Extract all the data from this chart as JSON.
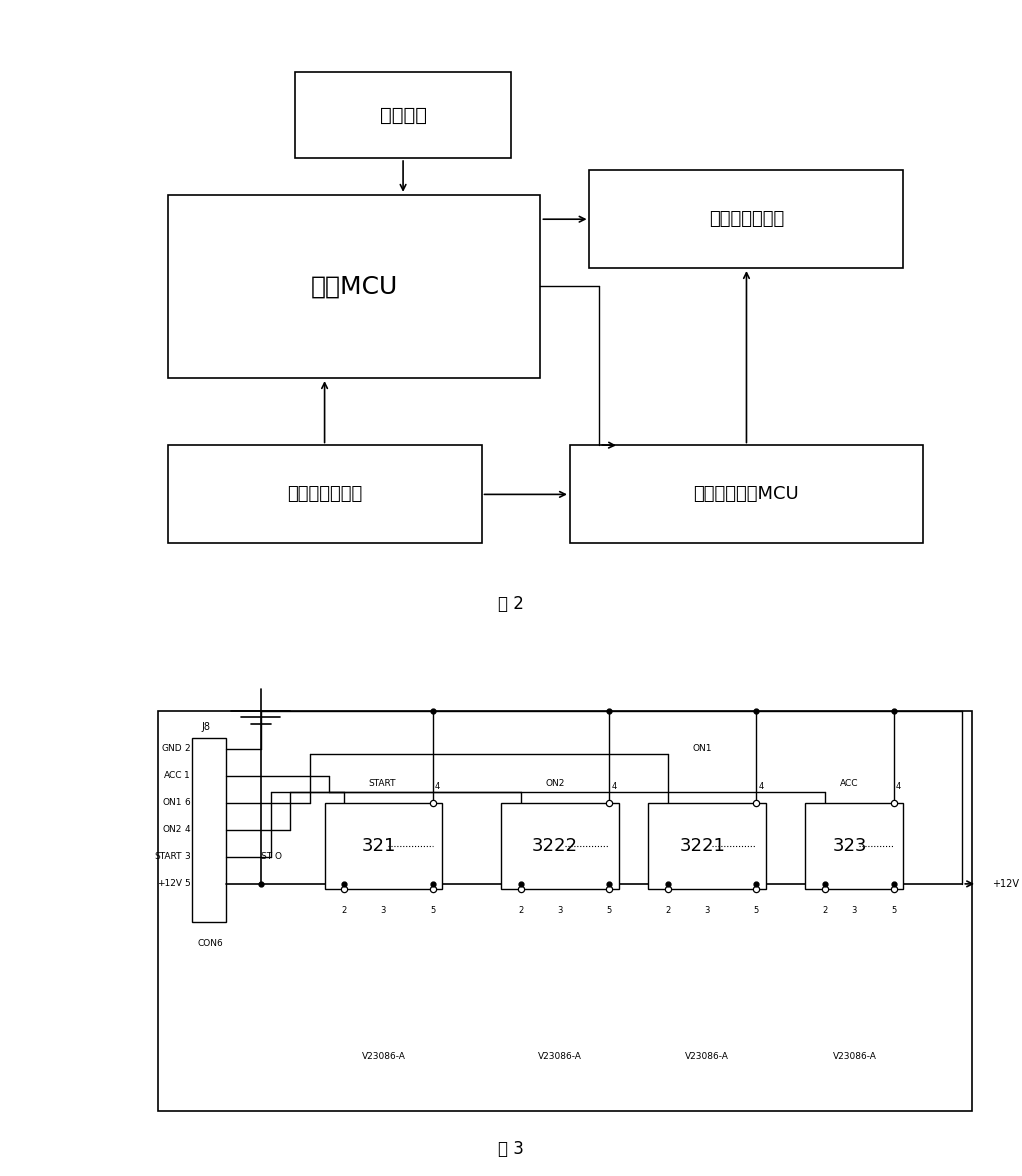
{
  "bg_color": "#ffffff",
  "fig2_caption": "图 2",
  "fig3_caption": "图 3",
  "fig2": {
    "btn_label": "启动按鈕",
    "mcu_label": "主控MCU",
    "relay_label": "启动马达继电器",
    "detect_label": "发动机启动检测",
    "monitor_label": "启动马达监测MCU"
  },
  "fig3": {
    "con_pins": [
      [
        "GND",
        "2"
      ],
      [
        "ACC",
        "1"
      ],
      [
        "ON1",
        "6"
      ],
      [
        "ON2",
        "4"
      ],
      [
        "START",
        "3"
      ],
      [
        "+12V",
        "5"
      ]
    ],
    "relay_labels": [
      "321",
      "3222",
      "3221",
      "323"
    ],
    "relay_top_labels": [
      "START",
      "ON2",
      "ON1",
      "ACC"
    ],
    "v_labels": [
      "V23086-A",
      "V23086-A",
      "V23086-A",
      "V23086-A"
    ]
  }
}
